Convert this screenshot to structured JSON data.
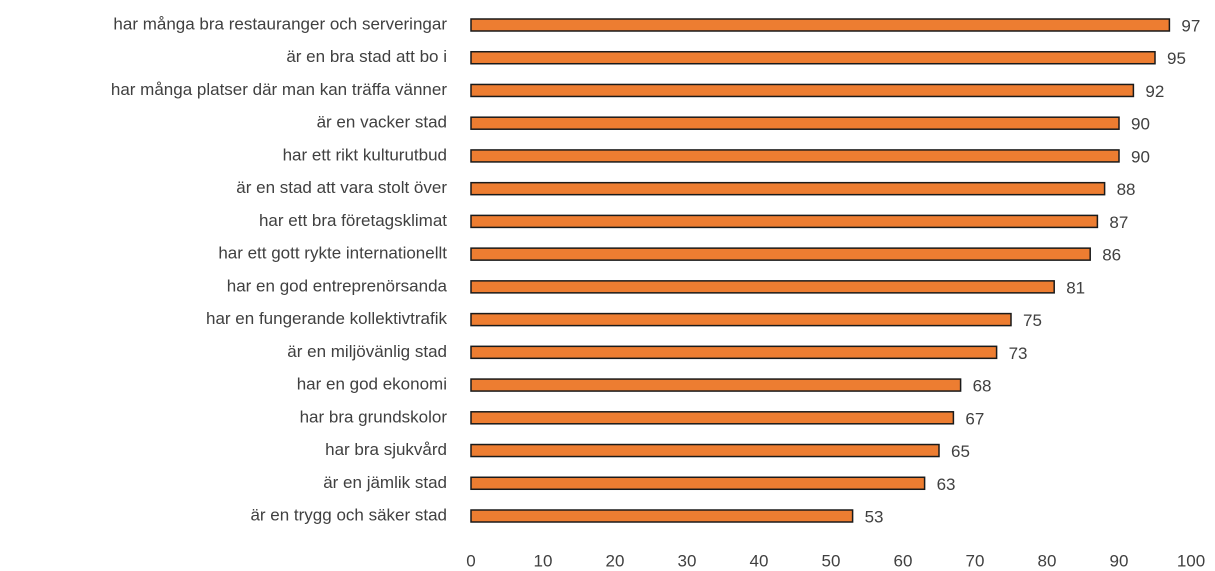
{
  "chart_data": {
    "type": "bar",
    "orientation": "horizontal",
    "categories": [
      "har många bra restauranger och serveringar",
      "är en bra stad att bo i",
      "har många platser där man kan träffa vänner",
      "är en vacker stad",
      "har ett rikt kulturutbud",
      "är en stad att vara stolt över",
      "har ett bra företagsklimat",
      "har ett gott rykte internationellt",
      "har en god entreprenörsanda",
      "har en fungerande kollektivtrafik",
      "är en miljövänlig stad",
      "har en god ekonomi",
      "har bra grundskolor",
      "har bra sjukvård",
      "är en jämlik stad",
      "är en trygg och säker stad"
    ],
    "values": [
      97,
      95,
      92,
      90,
      90,
      88,
      87,
      86,
      81,
      75,
      73,
      68,
      67,
      65,
      63,
      53
    ],
    "color": "#ed7d31",
    "xlim": [
      0,
      100
    ],
    "xticks": [
      0,
      10,
      20,
      30,
      40,
      50,
      60,
      70,
      80,
      90,
      100
    ],
    "grid": false
  }
}
